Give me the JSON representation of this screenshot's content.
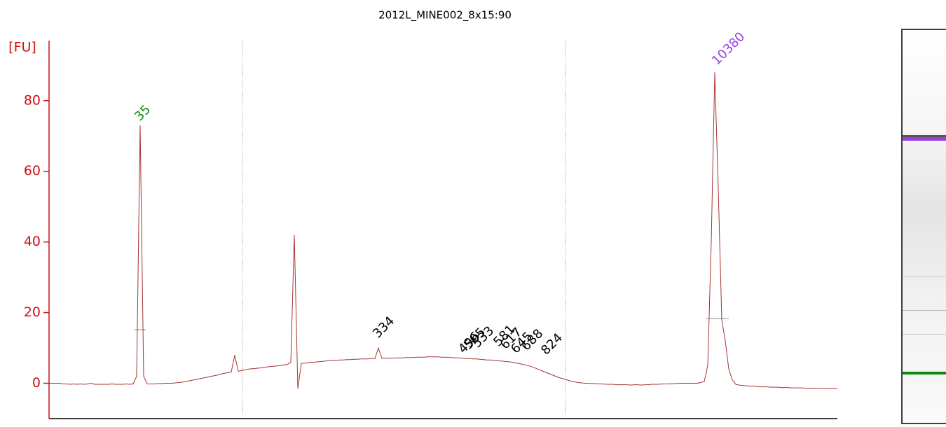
{
  "chart_data": {
    "type": "line",
    "title": "2012L_MINE002_8x15:90",
    "ylabel": "[FU]",
    "color": "#a83232",
    "axis_color": "#d01010",
    "ylim": [
      -10,
      97
    ],
    "yticks": [
      0,
      20,
      40,
      60,
      80
    ],
    "values": [
      0,
      0,
      0,
      0,
      -0.2,
      -0.2,
      -0.3,
      -0.2,
      -0.3,
      -0.2,
      -0.3,
      -0.2,
      0,
      -0.3,
      -0.3,
      -0.3,
      -0.3,
      -0.3,
      -0.2,
      -0.3,
      -0.3,
      -0.3,
      -0.2,
      -0.3,
      -0.2,
      2,
      73,
      2,
      -0.2,
      -0.2,
      -0.2,
      -0.1,
      -0.1,
      0,
      0,
      0,
      0.1,
      0.2,
      0.3,
      0.5,
      0.7,
      0.9,
      1.1,
      1.3,
      1.5,
      1.7,
      1.9,
      2.1,
      2.3,
      2.6,
      2.8,
      3,
      3.2,
      8,
      3.4,
      3.6,
      3.8,
      4,
      4.1,
      4.2,
      4.3,
      4.4,
      4.6,
      4.7,
      4.8,
      4.9,
      5,
      5.2,
      5.3,
      6,
      42,
      -1.5,
      5.6,
      5.7,
      5.8,
      5.9,
      6,
      6.1,
      6.2,
      6.3,
      6.4,
      6.5,
      6.5,
      6.6,
      6.6,
      6.7,
      6.7,
      6.8,
      6.8,
      6.9,
      6.9,
      6.9,
      7,
      7,
      10,
      7,
      7.1,
      7.1,
      7.1,
      7.2,
      7.2,
      7.2,
      7.3,
      7.3,
      7.3,
      7.4,
      7.4,
      7.4,
      7.5,
      7.5,
      7.5,
      7.5,
      7.4,
      7.4,
      7.3,
      7.3,
      7.2,
      7.2,
      7.1,
      7,
      7,
      6.9,
      6.9,
      6.8,
      6.7,
      6.6,
      6.6,
      6.5,
      6.4,
      6.3,
      6.2,
      6.1,
      6,
      5.8,
      5.6,
      5.4,
      5.2,
      4.9,
      4.6,
      4.2,
      3.8,
      3.4,
      3,
      2.6,
      2.2,
      1.8,
      1.5,
      1.2,
      0.9,
      0.6,
      0.4,
      0.2,
      0.1,
      0,
      0,
      -0.1,
      -0.1,
      -0.2,
      -0.2,
      -0.3,
      -0.3,
      -0.3,
      -0.4,
      -0.4,
      -0.4,
      -0.4,
      -0.5,
      -0.4,
      -0.4,
      -0.5,
      -0.4,
      -0.4,
      -0.3,
      -0.3,
      -0.3,
      -0.2,
      -0.2,
      -0.2,
      -0.1,
      -0.1,
      0,
      0,
      0,
      0,
      0,
      0,
      0.2,
      0.5,
      5,
      40,
      88,
      55,
      18,
      12,
      4,
      1,
      -0.3,
      -0.5,
      -0.6,
      -0.7,
      -0.8,
      -0.8,
      -0.9,
      -1,
      -1,
      -1,
      -1.1,
      -1.1,
      -1.1,
      -1.2,
      -1.2,
      -1.2,
      -1.3,
      -1.3,
      -1.3,
      -1.3,
      -1.4,
      -1.4,
      -1.4,
      -1.4,
      -1.5,
      -1.5,
      -1.5,
      -1.5,
      -1.5,
      -1.5
    ],
    "annotations": [
      {
        "text": "35",
        "color": "#118a11"
      },
      {
        "text": "334",
        "color": "#000000"
      },
      {
        "text": "496",
        "color": "#000000"
      },
      {
        "text": "505",
        "color": "#000000"
      },
      {
        "text": "533",
        "color": "#000000"
      },
      {
        "text": "581",
        "color": "#000000"
      },
      {
        "text": "617",
        "color": "#000000"
      },
      {
        "text": "645",
        "color": "#000000"
      },
      {
        "text": "688",
        "color": "#000000"
      },
      {
        "text": "824",
        "color": "#000000"
      },
      {
        "text": "10380",
        "color": "#9b3fe0"
      }
    ]
  }
}
